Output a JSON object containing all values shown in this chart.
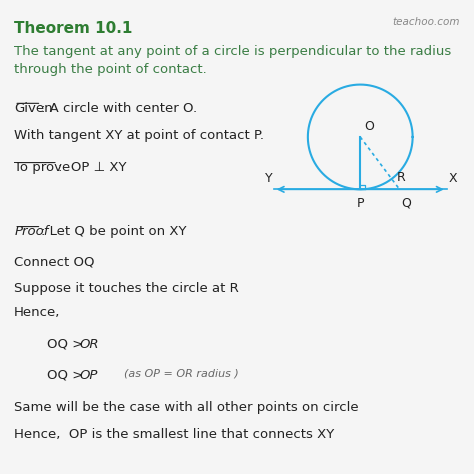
{
  "title": "Theorem 10.1",
  "title_color": "#2e7d32",
  "watermark": "teachoo.com",
  "bg_color": "#f5f5f5",
  "theorem_text": "The tangent at any point of a circle is perpendicular to the radius\nthrough the point of contact.",
  "given_label": "Given",
  "given_text": ": A circle with center O.",
  "given_text2": "With tangent XY at point of contact P.",
  "prove_label": "To prove",
  "prove_text": ":  OP ⊥ XY",
  "proof_label": "Proof",
  "proof_text1": ": Let Q be point on XY",
  "proof_text2": "Connect OQ",
  "proof_text3": "Suppose it touches the circle at R",
  "hence_text": "Hence,",
  "last1": "Same will be the case with all other points on circle",
  "last2": "Hence,  OP is the smallest line that connects XY",
  "circle_color": "#29abe2",
  "line_color": "#29abe2",
  "text_color": "#222222",
  "green_color": "#3a7d44",
  "watermark_color": "#888888",
  "title_fs": 11,
  "body_fs": 9.5,
  "small_fs": 8.0
}
